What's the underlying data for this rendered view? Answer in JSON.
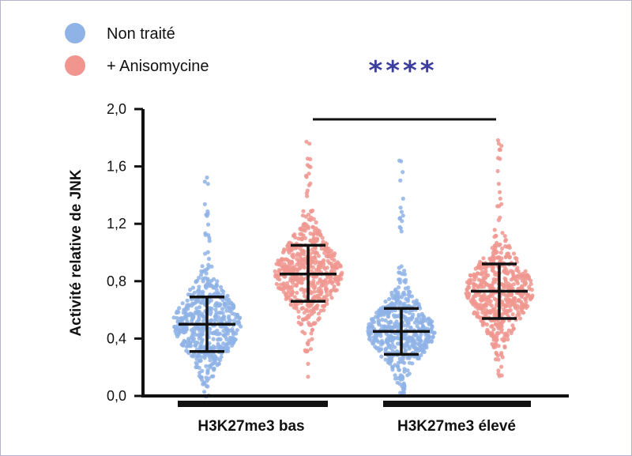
{
  "chart_data": {
    "type": "scatter",
    "subtype": "beeswarm",
    "ylabel": "Activité relative de JNK",
    "ylim": [
      0,
      2.0
    ],
    "yticks": [
      "0,0",
      "0,4",
      "0,8",
      "1,2",
      "1,6",
      "2,0"
    ],
    "ytick_values": [
      0,
      0.4,
      0.8,
      1.2,
      1.6,
      2.0
    ],
    "groups": [
      "H3K27me3 bas",
      "H3K27me3 élevé"
    ],
    "legend": [
      {
        "label": "Non traité",
        "color": "#8fb3e6"
      },
      {
        "label": "+ Anisomycine",
        "color": "#f0968f"
      }
    ],
    "legend_position": "top-left",
    "significance": {
      "label": "****",
      "color": "#3b3e9e",
      "between": [
        "H3K27me3 bas",
        "H3K27me3 élevé"
      ]
    },
    "series": [
      {
        "name": "Non traité",
        "group": "H3K27me3 bas",
        "mean": 0.5,
        "sd_low": 0.31,
        "sd_high": 0.69,
        "min": 0.0,
        "max": 1.56,
        "color": "#8fb3e6"
      },
      {
        "name": "+ Anisomycine",
        "group": "H3K27me3 bas",
        "mean": 0.85,
        "sd_low": 0.66,
        "sd_high": 1.05,
        "min": 0.12,
        "max": 1.83,
        "color": "#f0968f"
      },
      {
        "name": "Non traité",
        "group": "H3K27me3 élevé",
        "mean": 0.45,
        "sd_low": 0.29,
        "sd_high": 0.61,
        "min": 0.02,
        "max": 1.72,
        "color": "#8fb3e6"
      },
      {
        "name": "+ Anisomycine",
        "group": "H3K27me3 élevé",
        "mean": 0.73,
        "sd_low": 0.54,
        "sd_high": 0.92,
        "min": 0.14,
        "max": 1.79,
        "color": "#f0968f"
      }
    ]
  }
}
